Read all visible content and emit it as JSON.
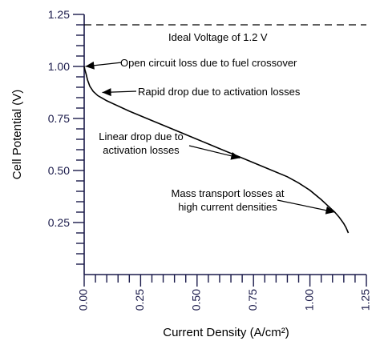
{
  "chart_data": {
    "type": "line",
    "xlabel": "Current Density (A/cm²)",
    "ylabel": "Cell Potential (V)",
    "xlim": [
      0,
      1.25
    ],
    "ylim": [
      0,
      1.25
    ],
    "x_ticks": [
      "0.00",
      "0.25",
      "0.50",
      "0.75",
      "1.00",
      "1.25"
    ],
    "y_ticks": [
      "0.25",
      "0.50",
      "0.75",
      "1.00",
      "1.25"
    ],
    "minor_tick_step": 0.05,
    "grid": false,
    "reference_lines": [
      {
        "value": 1.2,
        "orientation": "horizontal",
        "style": "dashed",
        "label": "Ideal Voltage of 1.2 V"
      }
    ],
    "series": [
      {
        "x": [
          0.0,
          0.003,
          0.008,
          0.015,
          0.025,
          0.04,
          0.06,
          0.1,
          0.2,
          0.3,
          0.4,
          0.5,
          0.6,
          0.7,
          0.8,
          0.9,
          0.95,
          1.0,
          1.05,
          1.08,
          1.11,
          1.13,
          1.15,
          1.16,
          1.17
        ],
        "y": [
          1.0,
          0.985,
          0.965,
          0.935,
          0.905,
          0.88,
          0.86,
          0.835,
          0.785,
          0.74,
          0.695,
          0.65,
          0.605,
          0.56,
          0.515,
          0.47,
          0.44,
          0.405,
          0.36,
          0.33,
          0.3,
          0.275,
          0.245,
          0.225,
          0.2
        ]
      }
    ],
    "annotations": [
      {
        "lines": [
          "Open circuit loss due to fuel crossover"
        ],
        "x": 0.005,
        "y": 1.0
      },
      {
        "lines": [
          "Rapid drop due to activation losses"
        ],
        "x": 0.08,
        "y": 0.875
      },
      {
        "lines": [
          "Linear drop due to",
          "activation losses"
        ],
        "x": 0.69,
        "y": 0.56
      },
      {
        "lines": [
          "Mass transport losses at",
          "high current densities"
        ],
        "x": 1.11,
        "y": 0.3
      }
    ]
  }
}
